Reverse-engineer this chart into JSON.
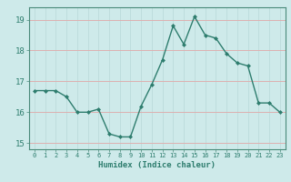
{
  "x": [
    0,
    1,
    2,
    3,
    4,
    5,
    6,
    7,
    8,
    9,
    10,
    11,
    12,
    13,
    14,
    15,
    16,
    17,
    18,
    19,
    20,
    21,
    22,
    23
  ],
  "y": [
    16.7,
    16.7,
    16.7,
    16.5,
    16.0,
    16.0,
    16.1,
    15.3,
    15.2,
    15.2,
    16.2,
    16.9,
    17.7,
    18.8,
    18.2,
    19.1,
    18.5,
    18.4,
    17.9,
    17.6,
    17.5,
    16.3,
    16.3,
    16.0
  ],
  "xlabel": "Humidex (Indice chaleur)",
  "ylim": [
    14.8,
    19.4
  ],
  "xlim": [
    -0.5,
    23.5
  ],
  "yticks": [
    15,
    16,
    17,
    18,
    19
  ],
  "xtick_labels": [
    "0",
    "1",
    "2",
    "3",
    "4",
    "5",
    "6",
    "7",
    "8",
    "9",
    "10",
    "11",
    "12",
    "13",
    "14",
    "15",
    "16",
    "17",
    "18",
    "19",
    "20",
    "21",
    "22",
    "23"
  ],
  "line_color": "#2e7d6e",
  "marker_color": "#2e7d6e",
  "bg_color": "#ceeaea",
  "grid_x_color": "#b8d8d8",
  "grid_y_color": "#ddb0b0",
  "tick_color": "#2e7d6e",
  "label_color": "#2e7d6e",
  "spine_color": "#4a8a7a"
}
